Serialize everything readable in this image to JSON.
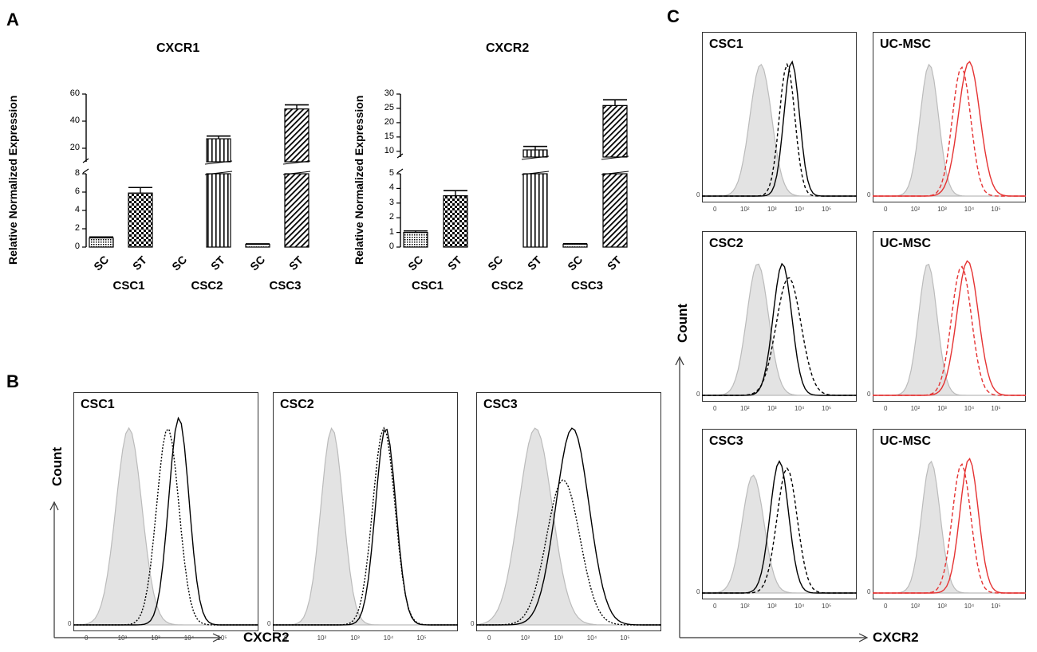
{
  "panels": {
    "a": "A",
    "b": "B",
    "c": "C"
  },
  "chart_data": [
    {
      "type": "bar",
      "title": "CXCR1",
      "ylabel": "Relative Normalized Expression",
      "groups": [
        "CSC1",
        "CSC2",
        "CSC3"
      ],
      "categories": [
        "SC",
        "ST",
        "SC",
        "ST",
        "SC",
        "ST"
      ],
      "values": [
        1.0,
        5.9,
        0.0,
        27.0,
        0.3,
        49.0
      ],
      "errors": [
        0.1,
        0.6,
        0.0,
        2.0,
        0.05,
        3.0
      ],
      "lower_ticks": [
        "0",
        "2",
        "4",
        "6",
        "8"
      ],
      "upper_ticks": [
        "20",
        "40",
        "60"
      ],
      "ylim_lower": [
        0,
        8
      ],
      "ylim_upper": [
        10,
        60
      ]
    },
    {
      "type": "bar",
      "title": "CXCR2",
      "ylabel": "Relative Normalized Expression",
      "groups": [
        "CSC1",
        "CSC2",
        "CSC3"
      ],
      "categories": [
        "SC",
        "ST",
        "SC",
        "ST",
        "SC",
        "ST"
      ],
      "values": [
        1.0,
        3.5,
        0.0,
        10.5,
        0.2,
        26.0
      ],
      "errors": [
        0.1,
        0.35,
        0.0,
        1.2,
        0.03,
        2.0
      ],
      "lower_ticks": [
        "0",
        "1",
        "2",
        "3",
        "4",
        "5"
      ],
      "upper_ticks": [
        "10",
        "15",
        "20",
        "25",
        "30"
      ],
      "ylim_lower": [
        0,
        5
      ],
      "ylim_upper": [
        8,
        30
      ]
    }
  ],
  "flow_b": {
    "xlabel": "CXCR2",
    "ylabel": "Count",
    "panels": [
      "CSC1",
      "CSC2",
      "CSC3"
    ],
    "xticks": [
      "0",
      "10²",
      "10³",
      "10⁴",
      "10⁵"
    ],
    "zero_tick": "0"
  },
  "flow_c": {
    "xlabel": "CXCR2",
    "ylabel": "Count",
    "left_panels": [
      "CSC1",
      "CSC2",
      "CSC3"
    ],
    "right_panels": [
      "UC-MSC",
      "UC-MSC",
      "UC-MSC"
    ],
    "xticks": [
      "0",
      "10²",
      "10³",
      "10⁴",
      "10⁵"
    ],
    "zero_tick": "0"
  }
}
